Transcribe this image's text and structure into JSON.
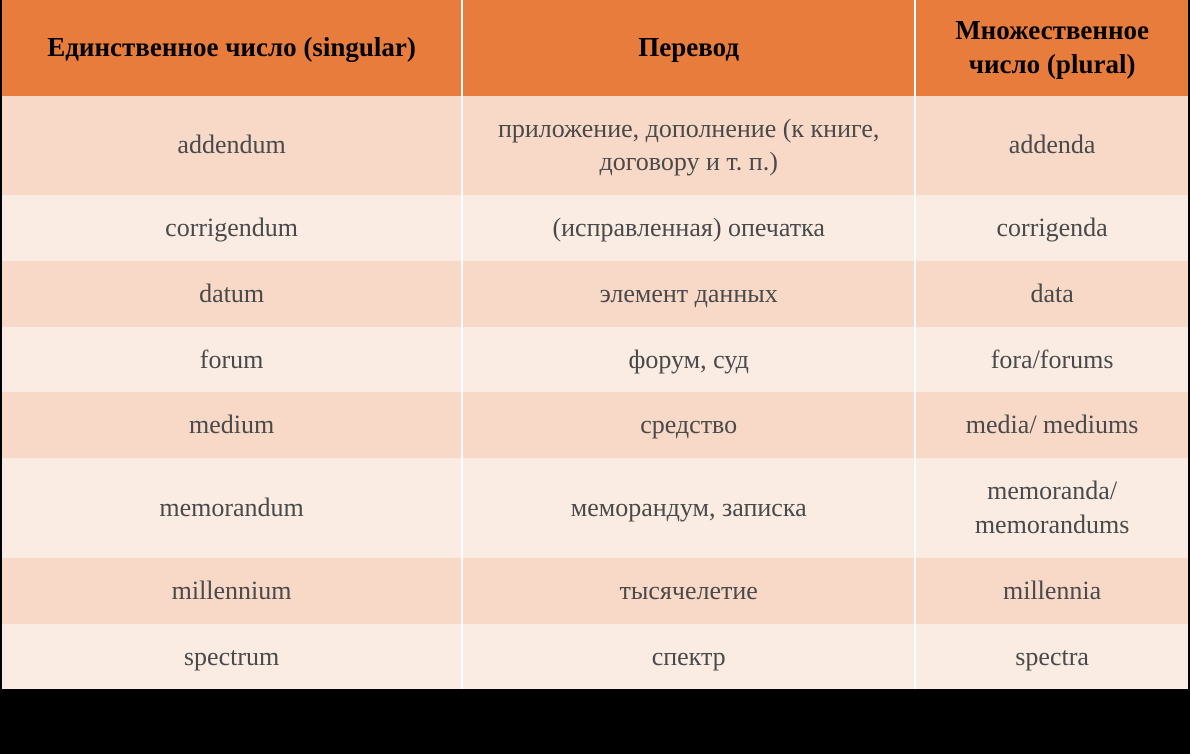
{
  "table": {
    "columns": [
      {
        "label": "Единственное число (singular)",
        "width_pct": 38.8
      },
      {
        "label": "Перевод",
        "width_pct": 38.2
      },
      {
        "label": "Множественное число (plural)",
        "width_pct": 23.0
      }
    ],
    "rows": [
      [
        "addendum",
        "приложение, дополнение (к книге, договору и т. п.)",
        "addenda"
      ],
      [
        "corrigendum",
        "(исправленная) опечатка",
        "corrigenda"
      ],
      [
        "datum",
        "элемент данных",
        "data"
      ],
      [
        "forum",
        "форум, суд",
        "fora/forums"
      ],
      [
        "medium",
        "средство",
        "media/ mediums"
      ],
      [
        "memorandum",
        "меморандум, записка",
        "memoranda/ memorandums"
      ],
      [
        "millennium",
        "тысячелетие",
        "millennia"
      ],
      [
        "spectrum",
        "спектр",
        "spectra"
      ]
    ],
    "header_bg": "#e77c3c",
    "row_odd_bg": "#f8d9c8",
    "row_even_bg": "#fbece3",
    "header_text_color": "#000000",
    "cell_text_color": "#4a4a4a",
    "border_color": "#ffffff",
    "header_fontsize": 27,
    "cell_fontsize": 26,
    "font_family": "Georgia, 'Times New Roman', serif"
  }
}
